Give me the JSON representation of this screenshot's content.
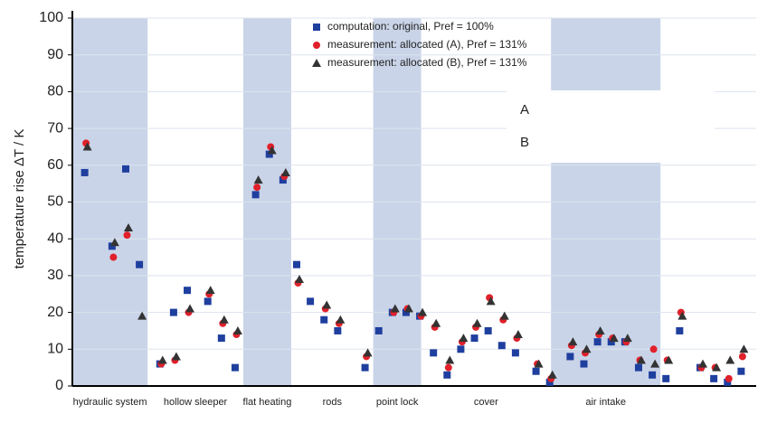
{
  "chart_data": {
    "type": "scatter",
    "ylabel": "temperature rise ΔT / K",
    "xlim": [
      0,
      100
    ],
    "ylim": [
      0,
      100
    ],
    "yticks": [
      0,
      10,
      20,
      30,
      40,
      50,
      60,
      70,
      80,
      90,
      100
    ],
    "grid": true,
    "legend": "top",
    "x": [
      2,
      6,
      8,
      10,
      13,
      15,
      17,
      20,
      22,
      24,
      27,
      29,
      31,
      33,
      35,
      37,
      39,
      43,
      45,
      47,
      49,
      51,
      53,
      55,
      57,
      59,
      61,
      63,
      65,
      68,
      70,
      73,
      75,
      77,
      79,
      81,
      83,
      85,
      87,
      89,
      92,
      94,
      96,
      98
    ],
    "groups": [
      {
        "label": "hydraulic system",
        "range": [
          0,
          11
        ],
        "shaded": true
      },
      {
        "label": "hollow sleeper",
        "range": [
          11,
          25
        ],
        "shaded": false
      },
      {
        "label": "flat heating",
        "range": [
          25,
          32
        ],
        "shaded": true
      },
      {
        "label": "rods",
        "range": [
          32,
          44
        ],
        "shaded": false
      },
      {
        "label": "point lock",
        "range": [
          44,
          51
        ],
        "shaded": true
      },
      {
        "label": "cover",
        "range": [
          51,
          70
        ],
        "shaded": false
      },
      {
        "label": "air intake",
        "range": [
          70,
          86
        ],
        "shaded": true
      }
    ],
    "annotations": [
      "A",
      "B"
    ],
    "series": [
      {
        "name": "computation: original, Pref = 100%",
        "color": "#1f3f9f",
        "marker": "square",
        "values": [
          58,
          38,
          59,
          33,
          6,
          20,
          26,
          23,
          13,
          5,
          52,
          63,
          56,
          33,
          23,
          18,
          15,
          5,
          15,
          20,
          20,
          19,
          9,
          3,
          10,
          13,
          15,
          11,
          9,
          4,
          1,
          8,
          6,
          12,
          12,
          12,
          5,
          3,
          2,
          15,
          5,
          2,
          1,
          4
        ]
      },
      {
        "name": "measurement: allocated (A), Pref = 131%",
        "color": "#e0202a",
        "marker": "circle",
        "values": [
          66,
          35,
          41,
          null,
          6,
          7,
          20,
          25,
          17,
          14,
          54,
          65,
          57,
          28,
          null,
          21,
          17,
          8,
          null,
          20,
          21,
          19,
          16,
          5,
          12,
          16,
          24,
          18,
          13,
          6,
          2,
          11,
          9,
          14,
          13,
          12,
          7,
          10,
          7,
          20,
          5,
          5,
          2,
          8
        ]
      },
      {
        "name": "measurement: allocated (B), Pref = 131%",
        "color": "#333333",
        "marker": "triangle",
        "values": [
          65,
          39,
          43,
          19,
          7,
          8,
          21,
          26,
          18,
          15,
          56,
          64,
          58,
          29,
          null,
          22,
          18,
          9,
          null,
          21,
          21,
          20,
          17,
          7,
          13,
          17,
          23,
          19,
          14,
          6,
          3,
          12,
          10,
          15,
          13,
          13,
          7,
          6,
          7,
          19,
          6,
          5,
          7,
          10
        ]
      }
    ]
  }
}
